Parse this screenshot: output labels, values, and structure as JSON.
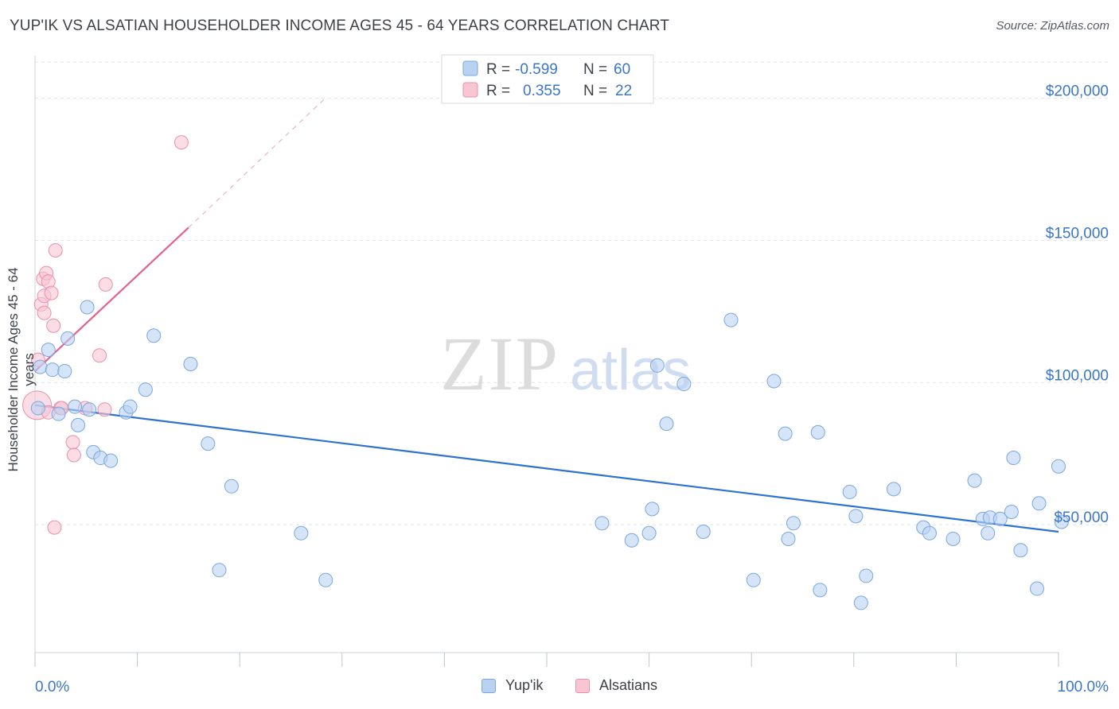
{
  "header": {
    "title": "YUP'IK VS ALSATIAN HOUSEHOLDER INCOME AGES 45 - 64 YEARS CORRELATION CHART",
    "source": "Source: ZipAtlas.com"
  },
  "watermark": {
    "zip": "ZIP",
    "atlas": "atlas"
  },
  "legend_top": [
    {
      "r_label": "R =",
      "r_value": "-0.599",
      "n_label": "N =",
      "n_value": "60"
    },
    {
      "r_label": "R =",
      "r_value": "0.355",
      "n_label": "N =",
      "n_value": "22"
    }
  ],
  "legend_bottom": [
    {
      "label": "Yup'ik"
    },
    {
      "label": "Alsatians"
    }
  ],
  "colors": {
    "blue_fill": "#b9d2f2",
    "blue_stroke": "#7aa7e0",
    "blue_line": "#2e72d2",
    "pink_fill": "#f8c6d3",
    "pink_stroke": "#eb8fa9",
    "pink_line": "#e2648e",
    "axis_text": "#3b76c8",
    "grid": "#dfe3e8"
  },
  "chart_data": {
    "type": "scatter",
    "title": "YUP'IK VS ALSATIAN HOUSEHOLDER INCOME AGES 45 - 64 YEARS CORRELATION CHART",
    "xlabel": "",
    "ylabel": "Householder Income Ages 45 - 64 years",
    "xlim": [
      0,
      100
    ],
    "ylim": [
      5000,
      215000
    ],
    "x_tick_labels": [
      "0.0%",
      "100.0%"
    ],
    "y_ticks": [
      {
        "value": 50000,
        "label": "$50,000"
      },
      {
        "value": 100000,
        "label": "$100,000"
      },
      {
        "value": 150000,
        "label": "$150,000"
      },
      {
        "value": 200000,
        "label": "$200,000"
      }
    ],
    "grid": true,
    "legend_position": "top-center",
    "series": [
      {
        "name": "Yup'ik",
        "color": "#7aa7e0",
        "trend": {
          "x": [
            0,
            100
          ],
          "y": [
            92000,
            47500
          ]
        },
        "points": [
          [
            0.3,
            91000
          ],
          [
            0.5,
            105500
          ],
          [
            1.3,
            111500
          ],
          [
            1.7,
            104500
          ],
          [
            2.3,
            89000
          ],
          [
            2.9,
            104000
          ],
          [
            3.2,
            115500
          ],
          [
            3.9,
            91500
          ],
          [
            4.2,
            85000
          ],
          [
            5.1,
            126500
          ],
          [
            5.3,
            90500
          ],
          [
            5.7,
            75500
          ],
          [
            6.4,
            73500
          ],
          [
            7.4,
            72500
          ],
          [
            8.9,
            89500
          ],
          [
            9.3,
            91500
          ],
          [
            10.8,
            97500
          ],
          [
            11.6,
            116500
          ],
          [
            15.2,
            106500
          ],
          [
            16.9,
            78500
          ],
          [
            18.0,
            34000
          ],
          [
            19.2,
            63500
          ],
          [
            26.0,
            47000
          ],
          [
            28.4,
            30500
          ],
          [
            55.4,
            50500
          ],
          [
            58.3,
            44500
          ],
          [
            60.0,
            47000
          ],
          [
            60.3,
            55500
          ],
          [
            60.8,
            106000
          ],
          [
            61.7,
            85500
          ],
          [
            63.4,
            99500
          ],
          [
            65.3,
            47500
          ],
          [
            68.0,
            122000
          ],
          [
            70.2,
            30500
          ],
          [
            72.2,
            100500
          ],
          [
            73.3,
            82000
          ],
          [
            73.6,
            45000
          ],
          [
            74.1,
            50500
          ],
          [
            76.5,
            82500
          ],
          [
            76.7,
            27000
          ],
          [
            79.6,
            61500
          ],
          [
            80.2,
            53000
          ],
          [
            80.7,
            22500
          ],
          [
            81.2,
            32000
          ],
          [
            83.9,
            62500
          ],
          [
            86.8,
            49000
          ],
          [
            87.4,
            47000
          ],
          [
            89.7,
            45000
          ],
          [
            91.8,
            65500
          ],
          [
            92.6,
            52000
          ],
          [
            93.1,
            47000
          ],
          [
            93.3,
            52500
          ],
          [
            94.3,
            52000
          ],
          [
            95.4,
            54500
          ],
          [
            95.6,
            73500
          ],
          [
            96.3,
            41000
          ],
          [
            97.9,
            27500
          ],
          [
            98.1,
            57500
          ],
          [
            100.0,
            70500
          ],
          [
            100.3,
            51000
          ]
        ]
      },
      {
        "name": "Alsatians",
        "color": "#eb8fa9",
        "trend": {
          "x": [
            0,
            15
          ],
          "y": [
            104000,
            154500
          ]
        },
        "trend_extension": {
          "x": [
            15,
            28.5
          ],
          "y": [
            154500,
            200500
          ]
        },
        "points": [
          [
            0.2,
            92000
          ],
          [
            0.3,
            108000
          ],
          [
            0.6,
            127500
          ],
          [
            0.8,
            136500
          ],
          [
            0.9,
            130500
          ],
          [
            0.9,
            124500
          ],
          [
            1.1,
            138500
          ],
          [
            1.3,
            89500
          ],
          [
            1.3,
            135500
          ],
          [
            1.6,
            131500
          ],
          [
            1.8,
            120000
          ],
          [
            1.9,
            49000
          ],
          [
            2.0,
            146500
          ],
          [
            2.5,
            91000
          ],
          [
            2.6,
            91000
          ],
          [
            3.7,
            79000
          ],
          [
            3.8,
            74500
          ],
          [
            4.9,
            91000
          ],
          [
            6.3,
            109500
          ],
          [
            6.8,
            90500
          ],
          [
            6.9,
            134500
          ],
          [
            14.3,
            184500
          ]
        ]
      }
    ]
  }
}
